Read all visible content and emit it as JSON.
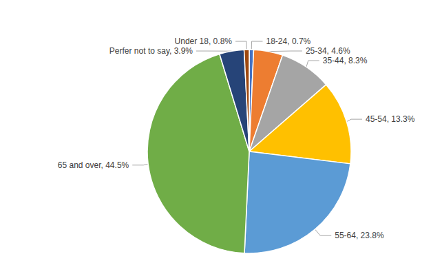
{
  "chart_data": {
    "type": "pie",
    "categories": [
      "18-24",
      "25-34",
      "35-44",
      "45-54",
      "55-64",
      "65 and over",
      "Perfer not to say",
      "Under 18"
    ],
    "values": [
      0.7,
      4.6,
      8.3,
      13.3,
      23.8,
      44.5,
      3.9,
      0.8
    ],
    "value_labels": [
      "18-24, 0.7%",
      "25-34, 4.6%",
      "35-44, 8.3%",
      "45-54, 13.3%",
      "55-64, 23.8%",
      "65 and over, 44.5%",
      "Perfer not to say, 3.9%",
      "Under 18, 0.8%"
    ],
    "colors": [
      "#4472c4",
      "#ed7d31",
      "#a5a5a5",
      "#ffc000",
      "#5b9bd5",
      "#70ad47",
      "#264478",
      "#9e480e"
    ],
    "data_labels": true
  }
}
